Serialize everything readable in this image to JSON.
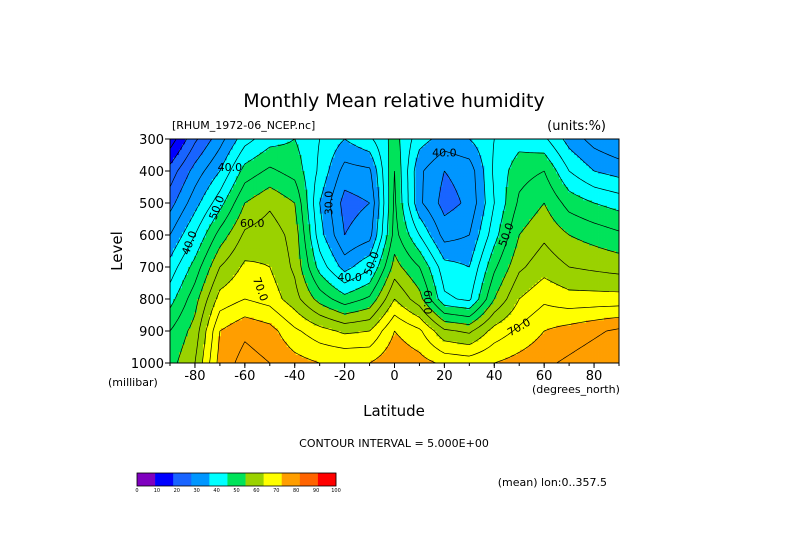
{
  "chart_data": {
    "type": "heatmap",
    "title": "Monthly Mean relative humidity",
    "dataset": "[RHUM_1972-06_NCEP.nc]",
    "units": "(units:%)",
    "xlabel": "Latitude",
    "x_units": "(degrees_north)",
    "ylabel": "Level",
    "y_units": "(millibar)",
    "xlim": [
      -90,
      90
    ],
    "ylim": [
      1000,
      300
    ],
    "x_ticks": [
      -80,
      -60,
      -40,
      -20,
      0,
      20,
      40,
      60,
      80
    ],
    "x_tick_labels": [
      "-80",
      "-60",
      "-40",
      "-20",
      "0",
      "20",
      "40",
      "60",
      "80"
    ],
    "y_ticks": [
      300,
      400,
      500,
      600,
      700,
      800,
      900,
      1000
    ],
    "y_tick_labels": [
      "300",
      "400",
      "500",
      "600",
      "700",
      "800",
      "900",
      "1000"
    ],
    "contour_interval_text": "CONTOUR INTERVAL = 5.000E+00",
    "averaging_text": "(mean) lon:0..357.5",
    "contour_labels": [
      {
        "text": "40.0",
        "lat": -66,
        "lev": 390
      },
      {
        "text": "50.0",
        "lat": -71,
        "lev": 515,
        "rotate": -70
      },
      {
        "text": "60.0",
        "lat": -57,
        "lev": 565
      },
      {
        "text": "40.0",
        "lat": -82,
        "lev": 625,
        "rotate": -70
      },
      {
        "text": "70.0",
        "lat": -54,
        "lev": 770,
        "rotate": 70
      },
      {
        "text": "30.0",
        "lat": -26,
        "lev": 500,
        "rotate": -90
      },
      {
        "text": "40.0",
        "lat": -18,
        "lev": 735
      },
      {
        "text": "50.0",
        "lat": -9,
        "lev": 690,
        "rotate": -70
      },
      {
        "text": "40.0",
        "lat": 20,
        "lev": 345
      },
      {
        "text": "60.0",
        "lat": 13,
        "lev": 810,
        "rotate": 90
      },
      {
        "text": "50.0",
        "lat": 45,
        "lev": 600,
        "rotate": -70
      },
      {
        "text": "70.0",
        "lat": 50,
        "lev": 890,
        "rotate": -30
      }
    ],
    "colorbar": {
      "levels": [
        0,
        10,
        20,
        30,
        40,
        50,
        60,
        70,
        80,
        90,
        100
      ],
      "labels": [
        "0",
        "10",
        "20",
        "30",
        "40",
        "50",
        "60",
        "70",
        "80",
        "90",
        "100"
      ],
      "colors": [
        "#7f00bf",
        "#0000ff",
        "#1964ff",
        "#0096ff",
        "#00ffff",
        "#00e35a",
        "#9ad200",
        "#ffff00",
        "#ff9e00",
        "#ff6400",
        "#ff0000"
      ]
    },
    "latitudes": [
      -90,
      -80,
      -70,
      -60,
      -50,
      -40,
      -30,
      -20,
      -10,
      0,
      10,
      20,
      30,
      40,
      50,
      60,
      70,
      80,
      90
    ],
    "levels": [
      300,
      400,
      500,
      600,
      700,
      800,
      900,
      1000
    ],
    "values": [
      [
        12,
        24,
        33,
        43,
        48,
        50,
        45,
        40,
        44,
        52,
        42,
        38,
        40,
        45,
        48,
        46,
        38,
        33,
        30
      ],
      [
        22,
        32,
        40,
        52,
        56,
        53,
        44,
        33,
        34,
        55,
        36,
        30,
        32,
        46,
        53,
        55,
        45,
        40,
        38
      ],
      [
        28,
        38,
        48,
        60,
        64,
        60,
        40,
        28,
        30,
        56,
        36,
        28,
        31,
        45,
        56,
        60,
        53,
        50,
        48
      ],
      [
        35,
        45,
        57,
        66,
        68,
        63,
        42,
        30,
        33,
        57,
        45,
        33,
        35,
        48,
        60,
        64,
        60,
        58,
        56
      ],
      [
        42,
        52,
        65,
        71,
        70,
        64,
        48,
        38,
        44,
        62,
        55,
        42,
        40,
        54,
        64,
        68,
        65,
        64,
        63
      ],
      [
        48,
        58,
        72,
        75,
        73,
        67,
        58,
        52,
        56,
        70,
        62,
        46,
        44,
        60,
        70,
        74,
        72,
        72,
        72
      ],
      [
        55,
        62,
        80,
        84,
        82,
        76,
        72,
        69,
        70,
        80,
        76,
        66,
        64,
        72,
        76,
        80,
        82,
        84,
        86
      ],
      [
        58,
        65,
        82,
        87,
        85,
        82,
        80,
        80,
        80,
        84,
        82,
        79,
        78,
        80,
        82,
        84,
        86,
        88,
        90
      ]
    ]
  }
}
